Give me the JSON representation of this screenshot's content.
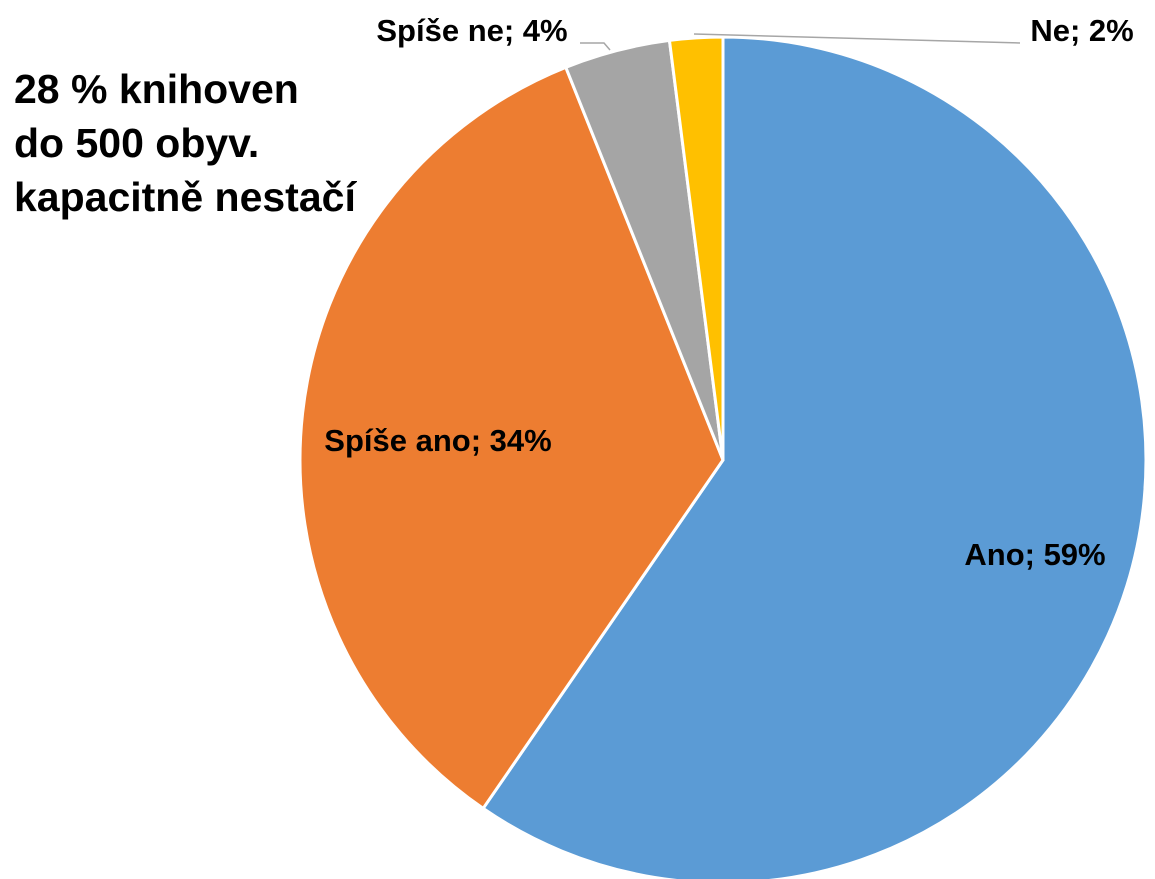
{
  "chart_data": {
    "type": "pie",
    "title": "",
    "annotation_lines": [
      "28 % knihoven",
      "do 500 obyv.",
      "kapacitně nestačí"
    ],
    "start_angle_deg": 0,
    "direction": "clockwise",
    "legend": "none",
    "slices": [
      {
        "name": "Ano",
        "value": 59,
        "label": "Ano; 59%",
        "color": "#5B9BD5",
        "label_position": "inside"
      },
      {
        "name": "Spíše ano",
        "value": 34,
        "label": "Spíše ano; 34%",
        "color": "#ED7D31",
        "label_position": "inside"
      },
      {
        "name": "Spíše ne",
        "value": 4,
        "label": "Spíše ne; 4%",
        "color": "#A5A5A5",
        "label_position": "outside-leader"
      },
      {
        "name": "Ne",
        "value": 2,
        "label": "Ne; 2%",
        "color": "#FFC000",
        "label_position": "outside-leader"
      }
    ]
  }
}
